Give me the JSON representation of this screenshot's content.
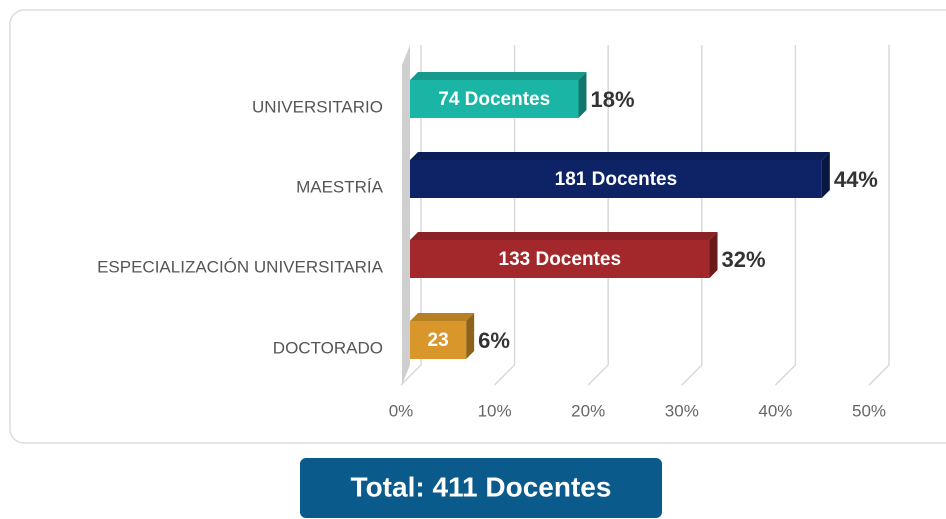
{
  "chart_data": {
    "type": "bar",
    "orientation": "horizontal",
    "categories": [
      "UNIVERSITARIO",
      "MAESTRÍA",
      "ESPECIALIZACIÓN UNIVERSITARIA",
      "DOCTORADO"
    ],
    "values": [
      18,
      44,
      32,
      6
    ],
    "value_labels": [
      "18%",
      "44%",
      "32%",
      "6%"
    ],
    "bar_labels": [
      "74 Docentes",
      "181 Docentes",
      "133 Docentes",
      "23"
    ],
    "colors": [
      "#1bb5a5",
      "#0d2366",
      "#a3282b",
      "#d9962a"
    ],
    "xlim": [
      0,
      50
    ],
    "xticks": [
      {
        "value": 0,
        "label": "0%"
      },
      {
        "value": 10,
        "label": "10%"
      },
      {
        "value": 20,
        "label": "20%"
      },
      {
        "value": 30,
        "label": "30%"
      },
      {
        "value": 40,
        "label": "40%"
      },
      {
        "value": 50,
        "label": "50%"
      }
    ],
    "grid": true,
    "annotation": "Total: 411 Docentes"
  }
}
